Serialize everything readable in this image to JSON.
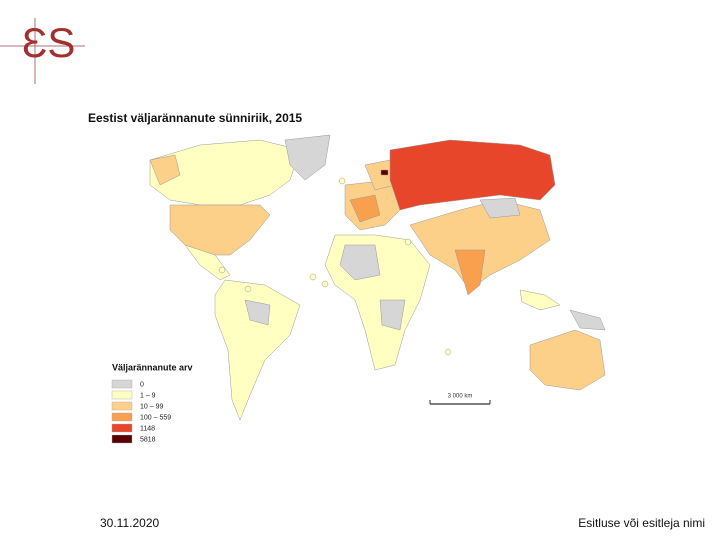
{
  "logo": "ƐS",
  "map": {
    "title": "Eestist väljarännanute sünniriik, 2015",
    "legend": {
      "title": "Väljarännanute arv",
      "items": [
        {
          "label": "0",
          "color": "#d6d6d6"
        },
        {
          "label": "1 – 9",
          "color": "#ffffc2"
        },
        {
          "label": "10 – 99",
          "color": "#fdd08a"
        },
        {
          "label": "100 – 559",
          "color": "#f8a04e"
        },
        {
          "label": "1148",
          "color": "#e8462a"
        },
        {
          "label": "5818",
          "color": "#5a0000"
        }
      ]
    },
    "scale_bar": "3 000 km"
  },
  "footer": {
    "date": "30.11.2020",
    "presenter": "Esitluse või esitleja nimi"
  }
}
